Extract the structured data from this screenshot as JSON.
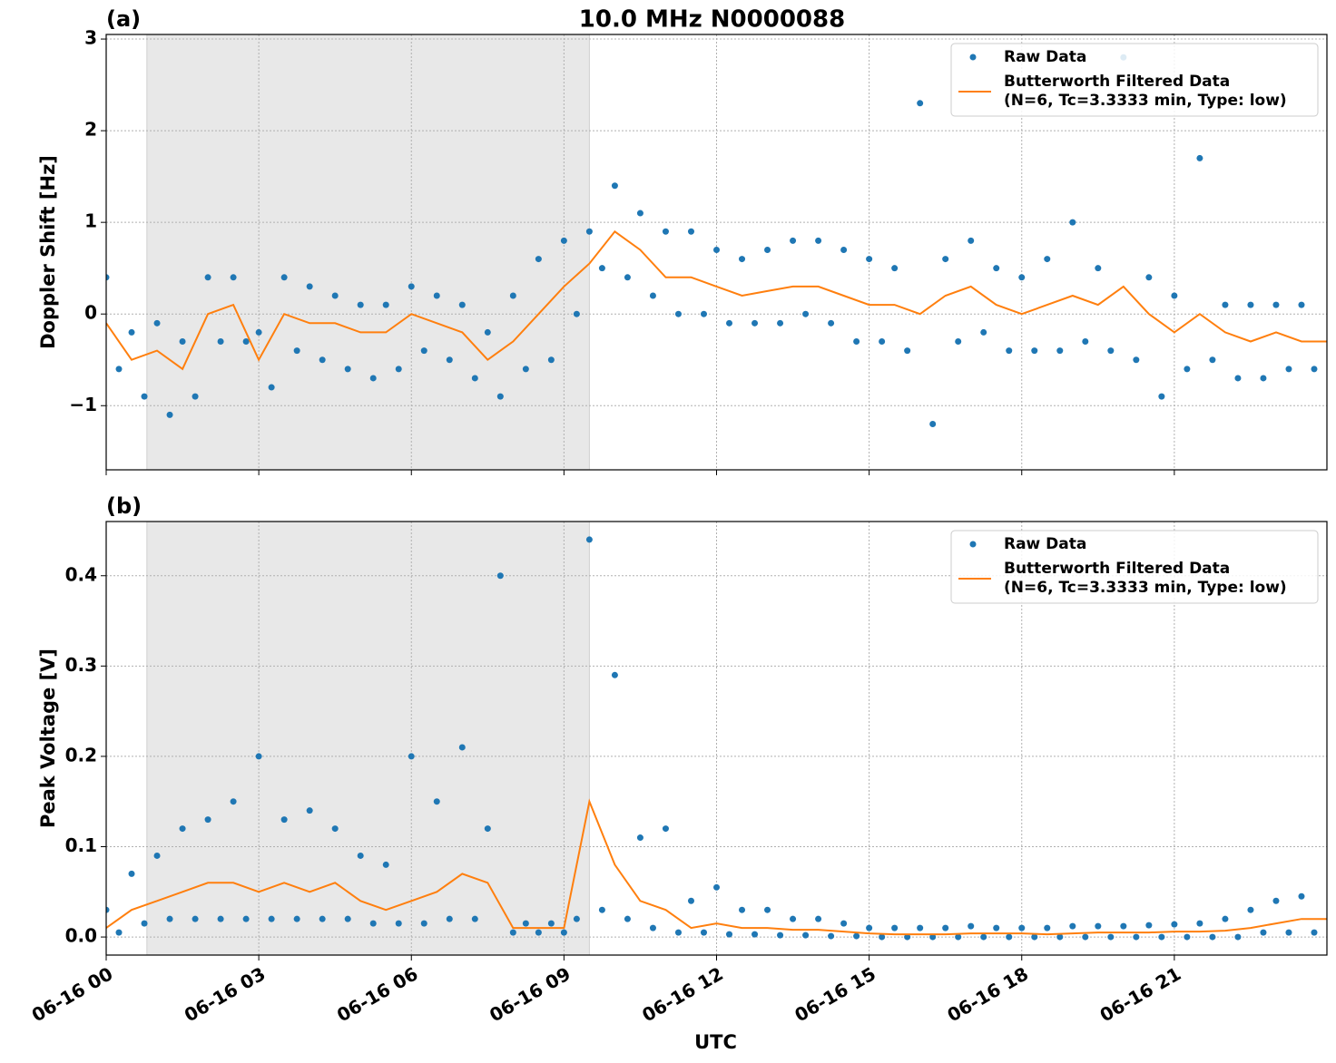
{
  "chart_data": [
    {
      "type": "scatter-line",
      "title": "10.0 MHz N0000088",
      "panel_label": "(a)",
      "ylabel": "Doppler Shift [Hz]",
      "xlim": [
        0,
        24
      ],
      "ylim": [
        -1.7,
        3.05
      ],
      "yticks": [
        {
          "value": -1,
          "label": "−1"
        },
        0,
        1,
        2,
        3
      ],
      "grid": true,
      "legend": "upper right",
      "shade": [
        0.8,
        9.5
      ],
      "series": [
        {
          "name": "Raw Data",
          "color": "#1f77b4",
          "kind": "scatter",
          "x": [
            0,
            0.25,
            0.5,
            0.75,
            1,
            1.25,
            1.5,
            1.75,
            2,
            2.25,
            2.5,
            2.75,
            3,
            3.25,
            3.5,
            3.75,
            4,
            4.25,
            4.5,
            4.75,
            5,
            5.25,
            5.5,
            5.75,
            6,
            6.25,
            6.5,
            6.75,
            7,
            7.25,
            7.5,
            7.75,
            8,
            8.25,
            8.5,
            8.75,
            9,
            9.25,
            9.5,
            9.75,
            10,
            10.25,
            10.5,
            10.75,
            11,
            11.25,
            11.5,
            11.75,
            12,
            12.25,
            12.5,
            12.75,
            13,
            13.25,
            13.5,
            13.75,
            14,
            14.25,
            14.5,
            14.75,
            15,
            15.25,
            15.5,
            15.75,
            16,
            16.25,
            16.5,
            16.75,
            17,
            17.25,
            17.5,
            17.75,
            18,
            18.25,
            18.5,
            18.75,
            19,
            19.25,
            19.5,
            19.75,
            20,
            20.25,
            20.5,
            20.75,
            21,
            21.25,
            21.5,
            21.75,
            22,
            22.25,
            22.5,
            22.75,
            23,
            23.25,
            23.5,
            23.75
          ],
          "values": [
            0.4,
            -0.6,
            -0.2,
            -0.9,
            -0.1,
            -1.1,
            -0.3,
            -0.9,
            0.4,
            -0.3,
            0.4,
            -0.3,
            -0.2,
            -0.8,
            0.4,
            -0.4,
            0.3,
            -0.5,
            0.2,
            -0.6,
            0.1,
            -0.7,
            0.1,
            -0.6,
            0.3,
            -0.4,
            0.2,
            -0.5,
            0.1,
            -0.7,
            -0.2,
            -0.9,
            0.2,
            -0.6,
            0.6,
            -0.5,
            0.8,
            0.0,
            0.9,
            0.5,
            1.4,
            0.4,
            1.1,
            0.2,
            0.9,
            0.0,
            0.9,
            0.0,
            0.7,
            -0.1,
            0.6,
            -0.1,
            0.7,
            -0.1,
            0.8,
            0.0,
            0.8,
            -0.1,
            0.7,
            -0.3,
            0.6,
            -0.3,
            0.5,
            -0.4,
            2.3,
            -1.2,
            0.6,
            -0.3,
            0.8,
            -0.2,
            0.5,
            -0.4,
            0.4,
            -0.4,
            0.6,
            -0.4,
            1.0,
            -0.3,
            0.5,
            -0.4,
            2.8,
            -0.5,
            0.4,
            -0.9,
            0.2,
            -0.6,
            1.7,
            -0.5,
            0.1,
            -0.7,
            0.1,
            -0.7,
            0.1,
            -0.6,
            0.1,
            -0.6
          ]
        },
        {
          "name": "Butterworth Filtered Data",
          "note": "(N=6, Tc=3.3333 min, Type: low)",
          "color": "#ff7f0e",
          "kind": "line",
          "x": [
            0,
            0.5,
            1,
            1.5,
            2,
            2.5,
            3,
            3.5,
            4,
            4.5,
            5,
            5.5,
            6,
            6.5,
            7,
            7.5,
            8,
            8.5,
            9,
            9.5,
            10,
            10.5,
            11,
            11.5,
            12,
            12.5,
            13,
            13.5,
            14,
            14.5,
            15,
            15.5,
            16,
            16.5,
            17,
            17.5,
            18,
            18.5,
            19,
            19.5,
            20,
            20.5,
            21,
            21.5,
            22,
            22.5,
            23,
            23.5,
            24
          ],
          "values": [
            -0.1,
            -0.5,
            -0.4,
            -0.6,
            0.0,
            0.1,
            -0.5,
            0.0,
            -0.1,
            -0.1,
            -0.2,
            -0.2,
            0.0,
            -0.1,
            -0.2,
            -0.5,
            -0.3,
            0.0,
            0.3,
            0.55,
            0.9,
            0.7,
            0.4,
            0.4,
            0.3,
            0.2,
            0.25,
            0.3,
            0.3,
            0.2,
            0.1,
            0.1,
            0.0,
            0.2,
            0.3,
            0.1,
            0.0,
            0.1,
            0.2,
            0.1,
            0.3,
            0.0,
            -0.2,
            0.0,
            -0.2,
            -0.3,
            -0.2,
            -0.3,
            -0.3
          ]
        }
      ]
    },
    {
      "type": "scatter-line",
      "panel_label": "(b)",
      "ylabel": "Peak Voltage [V]",
      "xlabel": "UTC",
      "xlim": [
        0,
        24
      ],
      "ylim": [
        -0.02,
        0.46
      ],
      "yticks": [
        {
          "value": 0,
          "label": "0.0"
        },
        0.1,
        0.2,
        0.3,
        0.4
      ],
      "xticks": [
        {
          "value": 0,
          "label": "06-16 00"
        },
        {
          "value": 3,
          "label": "06-16 03"
        },
        {
          "value": 6,
          "label": "06-16 06"
        },
        {
          "value": 9,
          "label": "06-16 09"
        },
        {
          "value": 12,
          "label": "06-16 12"
        },
        {
          "value": 15,
          "label": "06-16 15"
        },
        {
          "value": 18,
          "label": "06-16 18"
        },
        {
          "value": 21,
          "label": "06-16 21"
        }
      ],
      "grid": true,
      "legend": "upper right",
      "shade": [
        0.8,
        9.5
      ],
      "series": [
        {
          "name": "Raw Data",
          "color": "#1f77b4",
          "kind": "scatter",
          "x": [
            0,
            0.25,
            0.5,
            0.75,
            1,
            1.25,
            1.5,
            1.75,
            2,
            2.25,
            2.5,
            2.75,
            3,
            3.25,
            3.5,
            3.75,
            4,
            4.25,
            4.5,
            4.75,
            5,
            5.25,
            5.5,
            5.75,
            6,
            6.25,
            6.5,
            6.75,
            7,
            7.25,
            7.5,
            7.75,
            8,
            8.25,
            8.5,
            8.75,
            9,
            9.25,
            9.5,
            9.75,
            10,
            10.25,
            10.5,
            10.75,
            11,
            11.25,
            11.5,
            11.75,
            12,
            12.25,
            12.5,
            12.75,
            13,
            13.25,
            13.5,
            13.75,
            14,
            14.25,
            14.5,
            14.75,
            15,
            15.25,
            15.5,
            15.75,
            16,
            16.25,
            16.5,
            16.75,
            17,
            17.25,
            17.5,
            17.75,
            18,
            18.25,
            18.5,
            18.75,
            19,
            19.25,
            19.5,
            19.75,
            20,
            20.25,
            20.5,
            20.75,
            21,
            21.25,
            21.5,
            21.75,
            22,
            22.25,
            22.5,
            22.75,
            23,
            23.25,
            23.5,
            23.75
          ],
          "values": [
            0.03,
            0.005,
            0.07,
            0.015,
            0.09,
            0.02,
            0.12,
            0.02,
            0.13,
            0.02,
            0.15,
            0.02,
            0.2,
            0.02,
            0.13,
            0.02,
            0.14,
            0.02,
            0.12,
            0.02,
            0.09,
            0.015,
            0.08,
            0.015,
            0.2,
            0.015,
            0.15,
            0.02,
            0.21,
            0.02,
            0.12,
            0.4,
            0.005,
            0.015,
            0.005,
            0.015,
            0.005,
            0.02,
            0.44,
            0.03,
            0.29,
            0.02,
            0.11,
            0.01,
            0.12,
            0.005,
            0.04,
            0.005,
            0.055,
            0.003,
            0.03,
            0.003,
            0.03,
            0.002,
            0.02,
            0.002,
            0.02,
            0.001,
            0.015,
            0.001,
            0.01,
            0.0,
            0.01,
            0.0,
            0.01,
            0.0,
            0.01,
            0.0,
            0.012,
            0.0,
            0.01,
            0.0,
            0.01,
            0.0,
            0.01,
            0.0,
            0.012,
            0.0,
            0.012,
            0.0,
            0.012,
            0.0,
            0.013,
            0.0,
            0.014,
            0.0,
            0.015,
            0.0,
            0.02,
            0.0,
            0.03,
            0.005,
            0.04,
            0.005,
            0.045,
            0.005
          ]
        },
        {
          "name": "Butterworth Filtered Data",
          "note": "(N=6, Tc=3.3333 min, Type: low)",
          "color": "#ff7f0e",
          "kind": "line",
          "x": [
            0,
            0.5,
            1,
            1.5,
            2,
            2.5,
            3,
            3.5,
            4,
            4.5,
            5,
            5.5,
            6,
            6.5,
            7,
            7.5,
            8,
            8.5,
            9,
            9.5,
            10,
            10.5,
            11,
            11.5,
            12,
            12.5,
            13,
            13.5,
            14,
            14.5,
            15,
            15.5,
            16,
            16.5,
            17,
            17.5,
            18,
            18.5,
            19,
            19.5,
            20,
            20.5,
            21,
            21.5,
            22,
            22.5,
            23,
            23.5,
            24
          ],
          "values": [
            0.01,
            0.03,
            0.04,
            0.05,
            0.06,
            0.06,
            0.05,
            0.06,
            0.05,
            0.06,
            0.04,
            0.03,
            0.04,
            0.05,
            0.07,
            0.06,
            0.01,
            0.01,
            0.01,
            0.15,
            0.08,
            0.04,
            0.03,
            0.01,
            0.015,
            0.01,
            0.01,
            0.008,
            0.008,
            0.006,
            0.004,
            0.003,
            0.003,
            0.003,
            0.004,
            0.004,
            0.004,
            0.003,
            0.004,
            0.005,
            0.005,
            0.005,
            0.006,
            0.006,
            0.007,
            0.01,
            0.015,
            0.02,
            0.02
          ]
        }
      ]
    }
  ]
}
